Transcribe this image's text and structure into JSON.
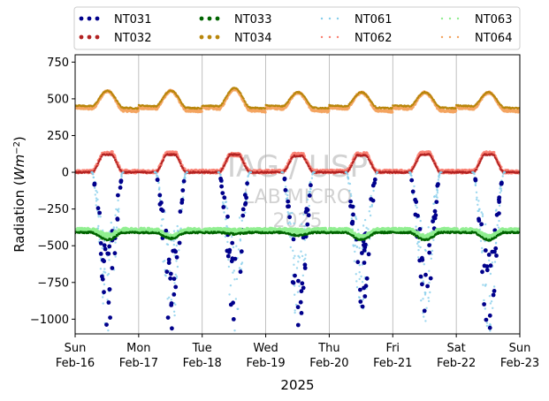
{
  "chart_data": {
    "type": "scatter",
    "xlabel": "2025",
    "ylabel_main": "Radiation (",
    "ylabel_unit": "Wm",
    "ylabel_exp": "−2",
    "ylabel_close": ")",
    "x_range": [
      "2025-02-16",
      "2025-02-23"
    ],
    "ylim": [
      -1100,
      800
    ],
    "y_ticks": [
      {
        "value": 750,
        "label": "750"
      },
      {
        "value": 500,
        "label": "500"
      },
      {
        "value": 250,
        "label": "250"
      },
      {
        "value": 0,
        "label": "0"
      },
      {
        "value": -250,
        "label": "−250"
      },
      {
        "value": -500,
        "label": "−500"
      },
      {
        "value": -750,
        "label": "−750"
      },
      {
        "value": -1000,
        "label": "−1000"
      }
    ],
    "x_ticks": [
      {
        "date": "2025-02-16",
        "day": "Sun",
        "label": "Feb-16"
      },
      {
        "date": "2025-02-17",
        "day": "Mon",
        "label": "Feb-17"
      },
      {
        "date": "2025-02-18",
        "day": "Tue",
        "label": "Feb-18"
      },
      {
        "date": "2025-02-19",
        "day": "Wed",
        "label": "Feb-19"
      },
      {
        "date": "2025-02-20",
        "day": "Thu",
        "label": "Feb-20"
      },
      {
        "date": "2025-02-21",
        "day": "Fri",
        "label": "Feb-21"
      },
      {
        "date": "2025-02-22",
        "day": "Sat",
        "label": "Feb-22"
      },
      {
        "date": "2025-02-23",
        "day": "Sun",
        "label": "Feb-23"
      }
    ],
    "grid": "vertical",
    "legend_placement": "top, outside, 4 columns",
    "watermark": [
      "IAG / USP",
      "LAB MICRO",
      "2025"
    ],
    "series": [
      {
        "name": "NT031",
        "color": "#00008b",
        "style": "dots-large",
        "daily_min": [
          -1080,
          -1070,
          -1050,
          -1060,
          -980,
          -1000,
          -1080
        ],
        "daily_max": [
          0,
          0,
          0,
          0,
          0,
          0,
          0
        ]
      },
      {
        "name": "NT032",
        "color": "#b22222",
        "style": "dots-large",
        "daily_max": [
          120,
          120,
          120,
          110,
          115,
          120,
          120
        ],
        "night_value": 0
      },
      {
        "name": "NT033",
        "color": "#006400",
        "style": "dots-large",
        "daily_min": [
          -460,
          -450,
          -420,
          -430,
          -460,
          -460,
          -460
        ],
        "night_value": -410
      },
      {
        "name": "NT034",
        "color": "#b8860b",
        "style": "dots-large",
        "daily_max": [
          560,
          560,
          580,
          550,
          550,
          550,
          550
        ],
        "night_value": 450
      },
      {
        "name": "NT061",
        "color": "#87ceeb",
        "style": "dots-small",
        "daily_min": [
          -1100,
          -1100,
          -1080,
          -1060,
          -1000,
          -1050,
          -1100
        ],
        "daily_max": [
          0,
          0,
          0,
          0,
          0,
          0,
          0
        ]
      },
      {
        "name": "NT062",
        "color": "#fa8072",
        "style": "dots-small",
        "daily_max": [
          130,
          130,
          120,
          120,
          125,
          130,
          130
        ],
        "night_value": 5
      },
      {
        "name": "NT063",
        "color": "#90ee90",
        "style": "dots-small",
        "daily_min": [
          -430,
          -440,
          -400,
          -400,
          -440,
          -440,
          -440
        ],
        "night_value": -395
      },
      {
        "name": "NT064",
        "color": "#f4a460",
        "style": "dots-small",
        "daily_max": [
          565,
          565,
          580,
          555,
          555,
          555,
          555
        ],
        "night_value": 440
      }
    ]
  }
}
